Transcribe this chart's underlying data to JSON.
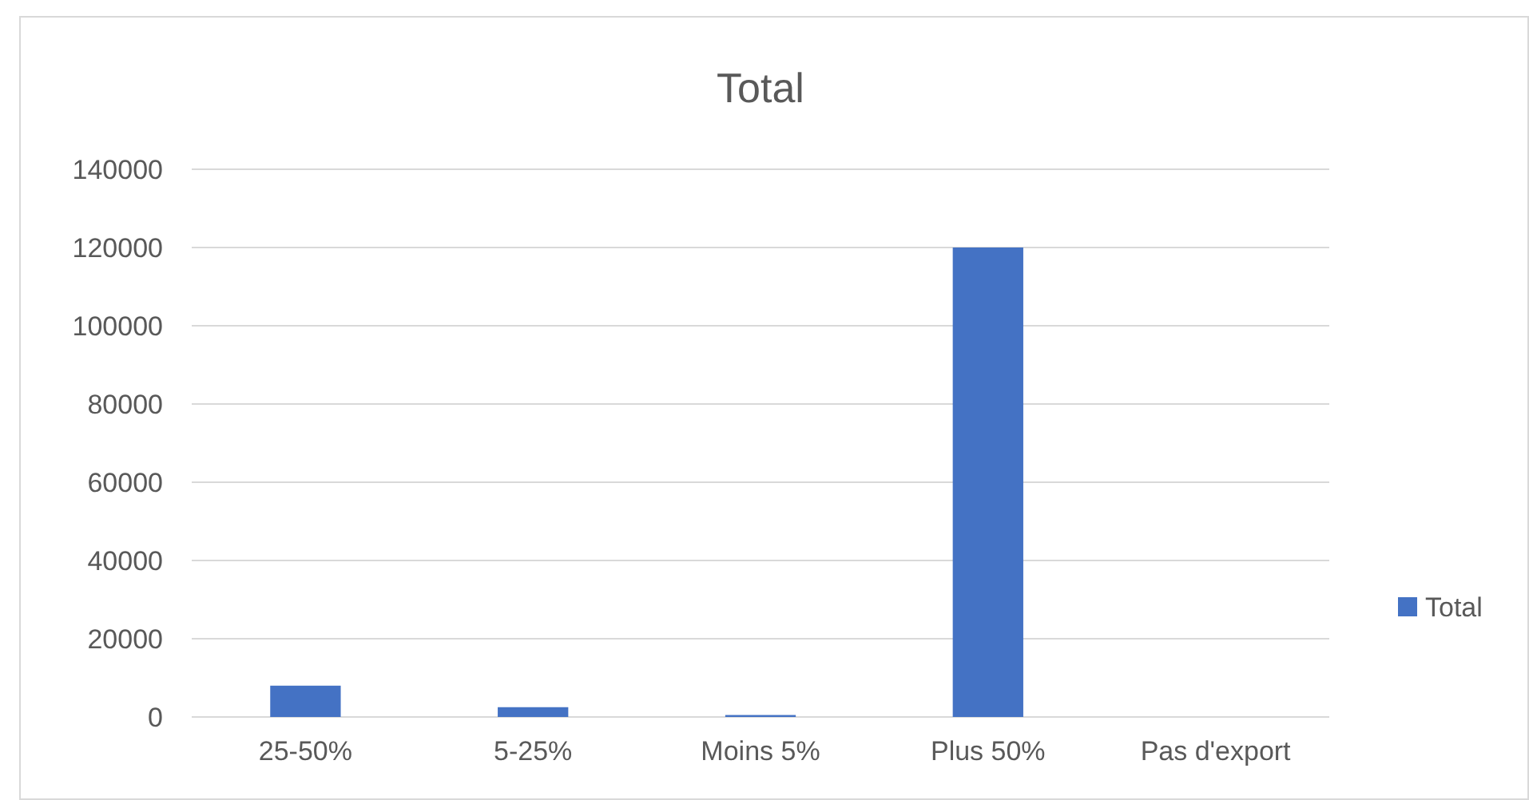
{
  "chart_data": {
    "type": "bar",
    "title": "Total",
    "categories": [
      "25-50%",
      "5-25%",
      "Moins 5%",
      "Plus 50%",
      "Pas d'export"
    ],
    "series": [
      {
        "name": "Total",
        "color": "#4472c4",
        "values": [
          8000,
          2500,
          500,
          120000,
          0
        ]
      }
    ],
    "ylim": [
      0,
      140000
    ],
    "yticks": [
      0,
      20000,
      40000,
      60000,
      80000,
      100000,
      120000,
      140000
    ],
    "grid": "y",
    "legend": "right"
  }
}
